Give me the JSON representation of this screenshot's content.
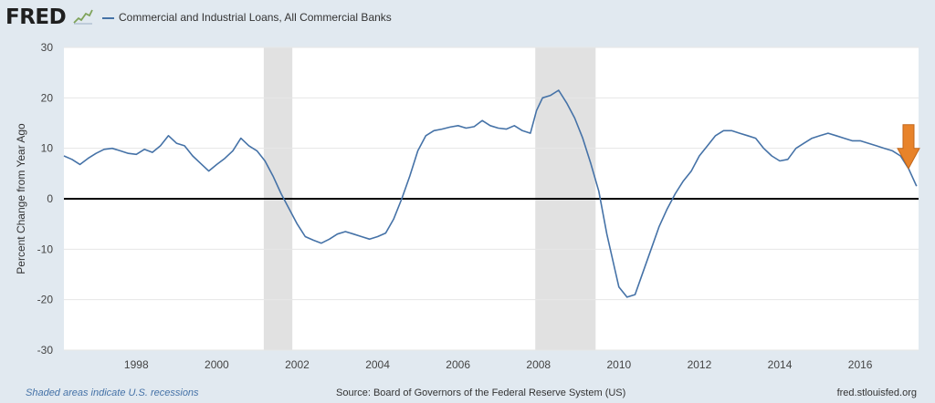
{
  "header": {
    "logo_text": "FRED",
    "logo_icon": "sparkline-icon",
    "legend_label": "Commercial and Industrial Loans, All Commercial Banks",
    "line_color": "#4572a7"
  },
  "footer": {
    "recession_note": "Shaded areas indicate U.S. recessions",
    "source": "Source: Board of Governors of the Federal Reserve System (US)",
    "url": "fred.stlouisfed.org"
  },
  "chart_data": {
    "type": "line",
    "title": "",
    "xlabel": "",
    "ylabel": "Percent Change from Year Ago",
    "xlim": [
      1996.2,
      2017.45
    ],
    "ylim": [
      -30,
      30
    ],
    "yticks": [
      30,
      20,
      10,
      0,
      -10,
      -20,
      -30
    ],
    "xticks": [
      1998,
      2000,
      2002,
      2004,
      2006,
      2008,
      2010,
      2012,
      2014,
      2016
    ],
    "grid": "horizontal",
    "zero_line": true,
    "recessions": [
      [
        2001.17,
        2001.88
      ],
      [
        2007.92,
        2009.42
      ]
    ],
    "annotation": {
      "type": "arrow-down",
      "color": "#e8832a",
      "x": 2017.2,
      "y": 6
    },
    "series": [
      {
        "name": "Commercial and Industrial Loans, All Commercial Banks",
        "x": [
          1996.2,
          1996.4,
          1996.6,
          1996.8,
          1997.0,
          1997.2,
          1997.4,
          1997.6,
          1997.8,
          1998.0,
          1998.2,
          1998.4,
          1998.6,
          1998.8,
          1999.0,
          1999.2,
          1999.4,
          1999.6,
          1999.8,
          2000.0,
          2000.2,
          2000.4,
          2000.6,
          2000.8,
          2001.0,
          2001.2,
          2001.4,
          2001.6,
          2001.8,
          2002.0,
          2002.2,
          2002.4,
          2002.6,
          2002.8,
          2003.0,
          2003.2,
          2003.4,
          2003.6,
          2003.8,
          2004.0,
          2004.2,
          2004.4,
          2004.6,
          2004.8,
          2005.0,
          2005.2,
          2005.4,
          2005.6,
          2005.8,
          2006.0,
          2006.2,
          2006.4,
          2006.6,
          2006.8,
          2007.0,
          2007.2,
          2007.4,
          2007.6,
          2007.8,
          2007.95,
          2008.1,
          2008.3,
          2008.5,
          2008.7,
          2008.9,
          2009.1,
          2009.3,
          2009.5,
          2009.7,
          2009.9,
          2010.0,
          2010.2,
          2010.4,
          2010.6,
          2010.8,
          2011.0,
          2011.2,
          2011.4,
          2011.6,
          2011.8,
          2012.0,
          2012.2,
          2012.4,
          2012.6,
          2012.8,
          2013.0,
          2013.2,
          2013.4,
          2013.6,
          2013.8,
          2014.0,
          2014.2,
          2014.4,
          2014.6,
          2014.8,
          2015.0,
          2015.2,
          2015.4,
          2015.6,
          2015.8,
          2016.0,
          2016.2,
          2016.4,
          2016.6,
          2016.8,
          2017.0,
          2017.2,
          2017.4
        ],
        "values": [
          8.5,
          7.8,
          6.8,
          8.0,
          9.0,
          9.8,
          10.0,
          9.5,
          9.0,
          8.8,
          9.8,
          9.2,
          10.5,
          12.5,
          11.0,
          10.5,
          8.5,
          7.0,
          5.5,
          6.8,
          8.0,
          9.5,
          12.0,
          10.5,
          9.5,
          7.5,
          4.5,
          1.0,
          -2.0,
          -5.0,
          -7.5,
          -8.2,
          -8.8,
          -8.0,
          -7.0,
          -6.5,
          -7.0,
          -7.5,
          -8.0,
          -7.5,
          -6.8,
          -4.0,
          0.0,
          4.5,
          9.5,
          12.5,
          13.5,
          13.8,
          14.2,
          14.5,
          14.0,
          14.3,
          15.5,
          14.5,
          14.0,
          13.8,
          14.5,
          13.5,
          13.0,
          17.5,
          20.0,
          20.5,
          21.5,
          19.0,
          16.0,
          12.0,
          7.0,
          1.5,
          -7.0,
          -14.0,
          -17.5,
          -19.5,
          -19.0,
          -14.5,
          -10.0,
          -5.5,
          -2.0,
          1.0,
          3.5,
          5.5,
          8.5,
          10.5,
          12.5,
          13.5,
          13.5,
          13.0,
          12.5,
          12.0,
          10.0,
          8.5,
          7.5,
          7.8,
          10.0,
          11.0,
          12.0,
          12.5,
          13.0,
          12.5,
          12.0,
          11.5,
          11.5,
          11.0,
          10.5,
          10.0,
          9.5,
          8.5,
          6.0,
          2.5
        ]
      }
    ]
  }
}
